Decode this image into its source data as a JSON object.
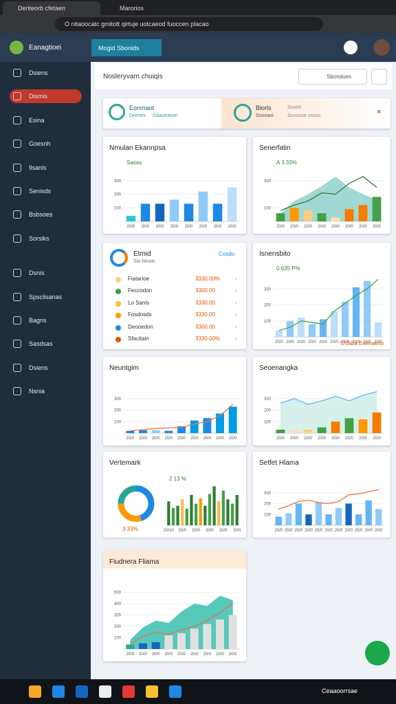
{
  "browser": {
    "tabs": [
      "Deriteorb cfetaen",
      "Marorios"
    ],
    "url": "O nitaoocatc gmitott qirtuje uotcaeod fuoccen placao"
  },
  "app": {
    "name": "Eanagtioei",
    "tab": "Mogid Sbonids"
  },
  "sidebar": {
    "items": [
      "Dsiens",
      "Dismis",
      "Esina",
      "Goesnh",
      "Ilsanls",
      "Senisds",
      "Bsbsoes",
      "Sorsiks",
      "Dsnis",
      "Spscilsanas",
      "Bagns",
      "Sasdsas",
      "Dsiens",
      "Nsnia"
    ],
    "active": 1
  },
  "header": {
    "title": "Nosleryvam chuiqis",
    "search": "Sbondoes"
  },
  "banner": {
    "left_title": "Eonmaot",
    "left_sub": "Deeses",
    "left_tag": "Gbautotoon",
    "right_title": "Blorls",
    "right_sub": "Sooeaoi",
    "right_tag": "Soooe",
    "right_tag2": "Sonsooe onoss"
  },
  "cards": [
    {
      "title": "Nmulan Ekannpsa",
      "notes": [
        "Sasas"
      ],
      "ylim": [
        0,
        400
      ],
      "yticks": [
        100,
        200,
        300
      ],
      "categories": [
        "20/0",
        "20/0",
        "20/0",
        "20/0",
        "20/0",
        "20/0",
        "20/0",
        "20/0"
      ],
      "series": [
        {
          "kind": "bar",
          "values": [
            40,
            130,
            130,
            160,
            130,
            220,
            130,
            250
          ],
          "colors": [
            "#26c6da",
            "#1e88e5",
            "#1565c0",
            "#90caf9",
            "#1e88e5",
            "#90caf9",
            "#1e88e5",
            "#bbdefb"
          ]
        }
      ]
    },
    {
      "title": "Senerfatin",
      "notes": [
        "A 3.33%"
      ],
      "ylim": [
        0,
        400
      ],
      "yticks": [
        100,
        300
      ],
      "categories": [
        "20/0",
        "20/0",
        "20/0",
        "20/0",
        "20/0",
        "20/0",
        "20/0",
        "20/0"
      ],
      "series": [
        {
          "kind": "area",
          "color": "#80cbc4",
          "values": [
            60,
            150,
            200,
            260,
            330,
            250,
            200,
            160
          ]
        },
        {
          "kind": "bar",
          "values": [
            60,
            100,
            80,
            60,
            30,
            90,
            120,
            180
          ],
          "colors": [
            "#43a047",
            "#ff9800",
            "#ffcc80",
            "#43a047",
            "#ffe0b2",
            "#f57c00",
            "#f57c00",
            "#43a047"
          ]
        },
        {
          "kind": "line",
          "color": "#2e7d32",
          "values": [
            80,
            120,
            150,
            210,
            200,
            280,
            330,
            250
          ]
        }
      ]
    },
    {
      "title": "Etmid",
      "subtitle": "Sla Ninals",
      "link": "Cosdo",
      "rows": [
        {
          "name": "Fiatarioe",
          "value": "3330.00%",
          "color": "#ffcc80"
        },
        {
          "name": "Feccodon",
          "value": "3300.00",
          "color": "#43a047"
        },
        {
          "name": "Lo Sanis",
          "value": "3330.00",
          "color": "#fbc02d"
        },
        {
          "name": "Fosdosds",
          "value": "3330.00",
          "color": "#ff9800"
        },
        {
          "name": "Deooedon",
          "value": "3300.00",
          "color": "#1e88e5"
        },
        {
          "name": "Sfacitain",
          "value": "3330.00%",
          "color": "#e65100"
        }
      ]
    },
    {
      "title": "Isnensbito",
      "notes": [
        "0.635 P%",
        "5/Vaba Esenaeno"
      ],
      "ylim": [
        0,
        400
      ],
      "yticks": [
        100,
        200,
        300
      ],
      "categories": [
        "20/0",
        "20/0",
        "20/0",
        "20/0",
        "20/0",
        "20/0",
        "20/0",
        "20/0",
        "20/0",
        "20/0"
      ],
      "series": [
        {
          "kind": "bar",
          "values": [
            40,
            100,
            120,
            80,
            110,
            160,
            220,
            310,
            350,
            90
          ],
          "colors": [
            "#bbdefb",
            "#90caf9",
            "#bbdefb",
            "#90caf9",
            "#64b5f6",
            "#bbdefb",
            "#90caf9",
            "#64b5f6",
            "#90caf9",
            "#bbdefb"
          ]
        },
        {
          "kind": "line",
          "color": "#43a047",
          "values": [
            40,
            60,
            100,
            90,
            80,
            160,
            210,
            260,
            300,
            360
          ]
        }
      ]
    },
    {
      "title": "Neuntgim",
      "ylim": [
        0,
        400
      ],
      "yticks": [
        100,
        200,
        300
      ],
      "categories": [
        "20/0",
        "20/0",
        "20/0",
        "20/0",
        "20/0",
        "20/0",
        "20/0",
        "20/0",
        "20/0"
      ],
      "series": [
        {
          "kind": "bar",
          "values": [
            20,
            25,
            25,
            20,
            60,
            110,
            130,
            170,
            230
          ],
          "colors": [
            "#1e88e5",
            "#1e88e5",
            "#90caf9",
            "#1e88e5",
            "#1e88e5",
            "#039be5",
            "#1e88e5",
            "#039be5",
            "#039be5"
          ]
        },
        {
          "kind": "line",
          "color": "#e8743b",
          "values": [
            20,
            30,
            40,
            45,
            50,
            80,
            100,
            150,
            250
          ]
        }
      ]
    },
    {
      "title": "Seoenangka",
      "ylim": [
        0,
        400
      ],
      "yticks": [
        100,
        200,
        300
      ],
      "categories": [
        "20/0",
        "20/0",
        "20/0",
        "20/0",
        "20/0",
        "20/0",
        "20/0",
        "20/0"
      ],
      "series": [
        {
          "kind": "area",
          "color": "#c8ece6",
          "values": [
            260,
            300,
            250,
            280,
            320,
            280,
            330,
            360
          ]
        },
        {
          "kind": "bar",
          "values": [
            30,
            30,
            30,
            50,
            100,
            130,
            120,
            180
          ],
          "colors": [
            "#43a047",
            "#ffe0b2",
            "#ffcc80",
            "#43a047",
            "#f57c00",
            "#43a047",
            "#ff9800",
            "#f57c00"
          ]
        },
        {
          "kind": "line",
          "color": "#64b5f6",
          "values": [
            260,
            300,
            250,
            280,
            320,
            280,
            330,
            360
          ]
        }
      ]
    },
    {
      "title": "Vertemark",
      "notes": [
        "2 13 %",
        "3 33%"
      ],
      "donut": {
        "values": [
          45,
          30,
          25
        ],
        "colors": [
          "#1e88e5",
          "#ff9800",
          "#26a69a"
        ]
      },
      "ylim": [
        0,
        100
      ],
      "categories": [
        "20/10",
        null,
        null,
        "20/0",
        null,
        null,
        "20/0",
        null,
        null,
        "20/0",
        null,
        null,
        "20/0",
        null,
        null,
        "20/0"
      ],
      "series": [
        {
          "kind": "bar",
          "values": [
            55,
            40,
            45,
            60,
            38,
            70,
            50,
            62,
            45,
            72,
            90,
            55,
            80,
            60,
            50,
            70
          ],
          "colors": [
            "#2e7d32",
            "#43a047",
            "#2e7d32",
            "#ffb74d",
            "#43a047",
            "#2e7d32",
            "#43a047",
            "#ff9800",
            "#2e7d32",
            "#43a047",
            "#2e7d32",
            "#ffb74d",
            "#43a047",
            "#2e7d32",
            "#43a047",
            "#2e7d32"
          ]
        }
      ]
    },
    {
      "title": "Setfet Hlama",
      "ylim": [
        0,
        400
      ],
      "yticks": [
        100,
        200,
        300
      ],
      "categories": [
        "20/0",
        "20/0",
        "20/0",
        "20/0",
        "20/0",
        "20/0",
        "20/0",
        "20/0",
        "20/0",
        "20/0",
        "20/0"
      ],
      "series": [
        {
          "kind": "bar",
          "values": [
            80,
            110,
            200,
            100,
            210,
            100,
            160,
            200,
            100,
            230,
            150
          ],
          "colors": [
            "#64b5f6",
            "#90caf9",
            "#64b5f6",
            "#1565c0",
            "#90caf9",
            "#64b5f6",
            "#90caf9",
            "#1565c0",
            "#64b5f6",
            "#64b5f6",
            "#90caf9"
          ]
        },
        {
          "kind": "line",
          "color": "#e8743b",
          "values": [
            150,
            180,
            220,
            230,
            210,
            200,
            220,
            280,
            290,
            310,
            330
          ]
        }
      ]
    },
    {
      "title": "Fiudnera Fliama",
      "ylim": [
        0,
        600
      ],
      "yticks": [
        100,
        200,
        300,
        400,
        500
      ],
      "categories": [
        "20/0",
        "20/0",
        "20/0",
        "20/0",
        "20/0",
        "20/0",
        "20/0",
        "20/0",
        "20/0"
      ],
      "series": [
        {
          "kind": "area",
          "color": "#1fb5a5",
          "values": [
            80,
            190,
            250,
            230,
            330,
            400,
            380,
            470,
            430
          ]
        },
        {
          "kind": "bar",
          "values": [
            40,
            50,
            60,
            120,
            140,
            180,
            220,
            260,
            300
          ],
          "colors": [
            "#26a69a",
            "#1565c0",
            "#1565c0",
            "#e0e0e0",
            "#e0e0e0",
            "#e0e0e0",
            "#e0e0e0",
            "#e0e0e0",
            "#e0e0e0"
          ]
        },
        {
          "kind": "line",
          "color": "#e8743b",
          "values": [
            40,
            110,
            150,
            130,
            170,
            200,
            250,
            320,
            400
          ]
        }
      ]
    }
  ],
  "taskbar": {
    "text": "Ceaaoorrsae"
  }
}
